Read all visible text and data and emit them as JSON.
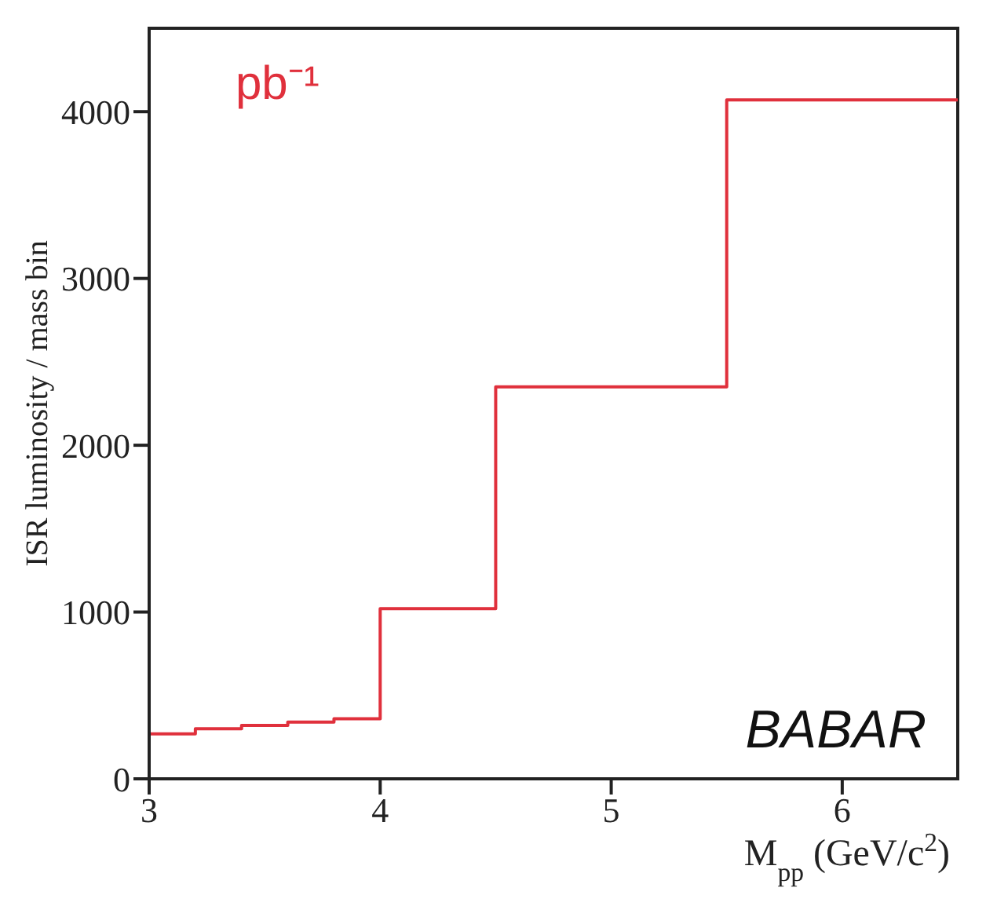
{
  "chart_data": {
    "type": "histogram",
    "xlabel": "M$_{pp}$ (GeV/c$^{2}$)",
    "ylabel": "ISR luminosity / mass bin",
    "bins": [
      3,
      3.2,
      3.4,
      3.6,
      3.8,
      4,
      4.5,
      5.5,
      6.5
    ],
    "values": [
      270,
      300,
      320,
      340,
      360,
      1020,
      2350,
      4070
    ],
    "color": "#e0303c",
    "xlim": [
      3,
      6.5
    ],
    "xticks": [
      3,
      4,
      5,
      6
    ],
    "ylim": [
      0,
      4500
    ],
    "yticks": [
      0,
      1000,
      2000,
      3000,
      4000
    ],
    "annotations": [
      "pb⁻¹",
      "BABAR"
    ]
  }
}
